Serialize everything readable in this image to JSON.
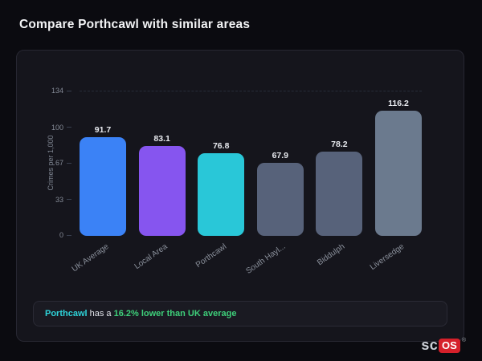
{
  "page": {
    "title": "Compare Porthcawl with similar areas"
  },
  "chart_data": {
    "type": "bar",
    "title": "Compare Porthcawl with similar areas",
    "xlabel": "",
    "ylabel": "Crimes per 1,000",
    "ylim": [
      0,
      134
    ],
    "yticks": [
      0,
      33,
      67,
      100,
      134
    ],
    "grid": "dashed top gridline only",
    "legend": "none",
    "categories": [
      "UK Average",
      "Local Area",
      "Porthcawl",
      "South Hayl...",
      "Biddulph",
      "Liversedge"
    ],
    "values": [
      91.7,
      83.1,
      76.8,
      67.9,
      78.2,
      116.2
    ],
    "bar_colors": [
      "#3b82f6",
      "#8655ef",
      "#29c7d8",
      "#57627a",
      "#57627a",
      "#6b7a8e"
    ]
  },
  "note": {
    "area": "Porthcawl",
    "middle": " has a ",
    "highlight": "16.2% lower than UK average"
  },
  "logo": {
    "prefix": "sc",
    "suffix": "OS",
    "registered": "®"
  },
  "colors": {
    "page_bg": "#0b0b10",
    "card_bg": "#15151c",
    "accent_teal": "#2ed3d9",
    "accent_green": "#3ecf7a",
    "logo_red": "#d6202a"
  }
}
